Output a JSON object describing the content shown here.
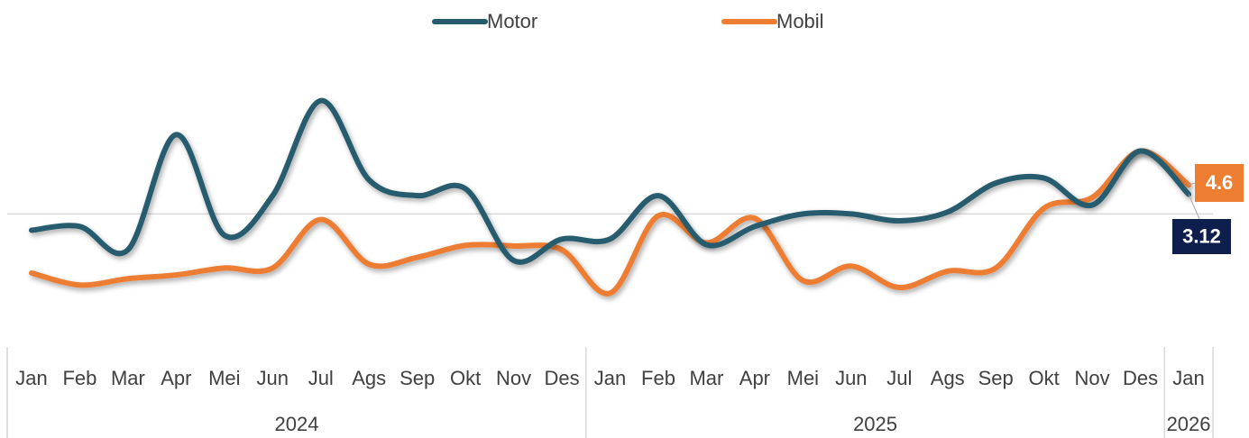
{
  "chart_data": {
    "type": "line",
    "categories": [
      "Jan",
      "Feb",
      "Mar",
      "Apr",
      "Mei",
      "Jun",
      "Jul",
      "Ags",
      "Sep",
      "Okt",
      "Nov",
      "Des",
      "Jan",
      "Feb",
      "Mar",
      "Apr",
      "Mei",
      "Jun",
      "Jul",
      "Ags",
      "Sep",
      "Okt",
      "Nov",
      "Des",
      "Jan"
    ],
    "groups": [
      {
        "label": "2024",
        "count": 12
      },
      {
        "label": "2025",
        "count": 12
      },
      {
        "label": "2026",
        "count": 1
      }
    ],
    "series": [
      {
        "name": "Motor",
        "color": "#265b6e",
        "values": [
          -2.6,
          -2.0,
          -5.7,
          12.6,
          -3.4,
          2.9,
          18.0,
          5.4,
          2.9,
          4.0,
          -7.4,
          -4.0,
          -4.0,
          2.9,
          -4.9,
          -2.0,
          0,
          0,
          -1.1,
          0.3,
          4.9,
          5.7,
          1.4,
          10.0,
          3.12
        ]
      },
      {
        "name": "Mobil",
        "color": "#ed7d31",
        "values": [
          -9.4,
          -11.3,
          -10.3,
          -9.7,
          -8.6,
          -8.6,
          -0.9,
          -8.0,
          -6.9,
          -5.0,
          -5.1,
          -5.7,
          -12.6,
          -0.3,
          -4.6,
          -0.7,
          -10.6,
          -8.3,
          -11.7,
          -9.1,
          -8.6,
          0.9,
          2.6,
          10.0,
          4.6
        ]
      }
    ],
    "ylim": [
      -19,
      25.4
    ],
    "yticks": [
      0
    ],
    "grid": true,
    "legend": "top"
  }
}
